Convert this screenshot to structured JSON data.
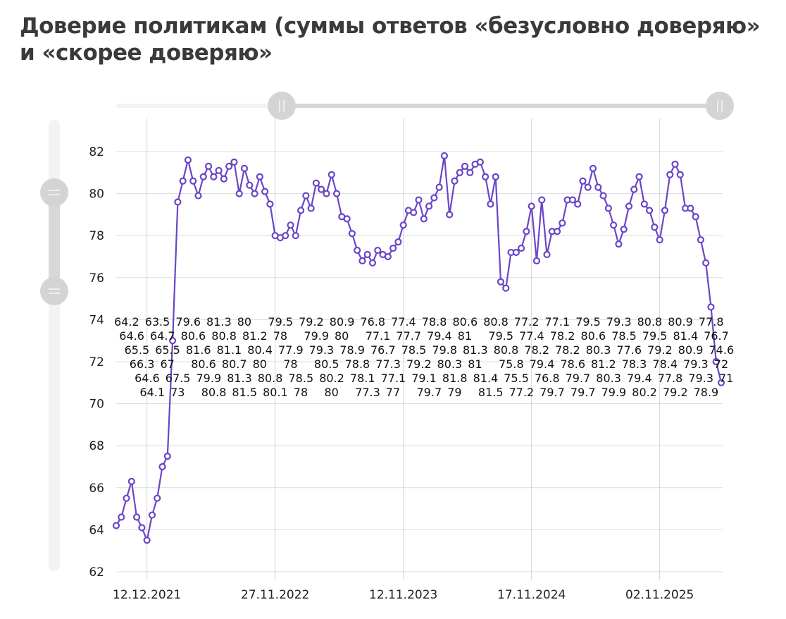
{
  "title": "Доверие политикам (суммы ответов «безусловно доверяю» и «скорее доверяю»",
  "chart_data": {
    "type": "line",
    "title": "Доверие политикам (суммы ответов «безусловно доверяю» и «скорее доверяю»",
    "xlabel": "",
    "ylabel": "",
    "ylim": [
      62,
      82
    ],
    "yticks": [
      62,
      64,
      66,
      68,
      70,
      72,
      74,
      76,
      78,
      80,
      82
    ],
    "x_tick_labels": [
      {
        "index": 6,
        "label": "12.12.2021"
      },
      {
        "index": 31,
        "label": "27.11.2022"
      },
      {
        "index": 56,
        "label": "12.11.2023"
      },
      {
        "index": 81,
        "label": "17.11.2024"
      },
      {
        "index": 106,
        "label": "02.11.2025"
      }
    ],
    "grid": true,
    "legend": "none",
    "data_labels": true,
    "line_color": "#6a45c8",
    "marker_fill": "#ffffff",
    "values": [
      64.2,
      64.6,
      65.5,
      66.3,
      64.6,
      64.1,
      63.5,
      64.7,
      65.5,
      67,
      67.5,
      73,
      79.6,
      80.6,
      81.6,
      80.6,
      79.9,
      80.8,
      81.3,
      80.8,
      81.1,
      80.7,
      81.3,
      81.5,
      80,
      81.2,
      80.4,
      80,
      80.8,
      80.1,
      79.5,
      78,
      77.9,
      78,
      78.5,
      78,
      79.2,
      79.9,
      79.3,
      80.5,
      80.2,
      80,
      80.9,
      80,
      78.9,
      78.8,
      78.1,
      77.3,
      76.8,
      77.1,
      76.7,
      77.3,
      77.1,
      77,
      77.4,
      77.7,
      78.5,
      79.2,
      79.1,
      79.7,
      78.8,
      79.4,
      79.8,
      80.3,
      81.8,
      79,
      80.6,
      81,
      81.3,
      81,
      81.4,
      81.5,
      80.8,
      79.5,
      80.8,
      75.8,
      75.5,
      77.2,
      77.2,
      77.4,
      78.2,
      79.4,
      76.8,
      79.7,
      77.1,
      78.2,
      78.2,
      78.6,
      79.7,
      79.7,
      79.5,
      80.6,
      80.3,
      81.2,
      80.3,
      79.9,
      79.3,
      78.5,
      77.6,
      78.3,
      79.4,
      80.2,
      80.8,
      79.5,
      79.2,
      78.4,
      77.8,
      79.2,
      80.9,
      81.4,
      80.9,
      79.3,
      79.3,
      78.9,
      77.8,
      76.7,
      74.6,
      72,
      71
    ]
  },
  "controls": {
    "x_range_slider": {
      "handle_icon": "grip-vertical-icon"
    },
    "y_range_slider": {
      "handle_icon": "grip-horizontal-icon"
    }
  }
}
